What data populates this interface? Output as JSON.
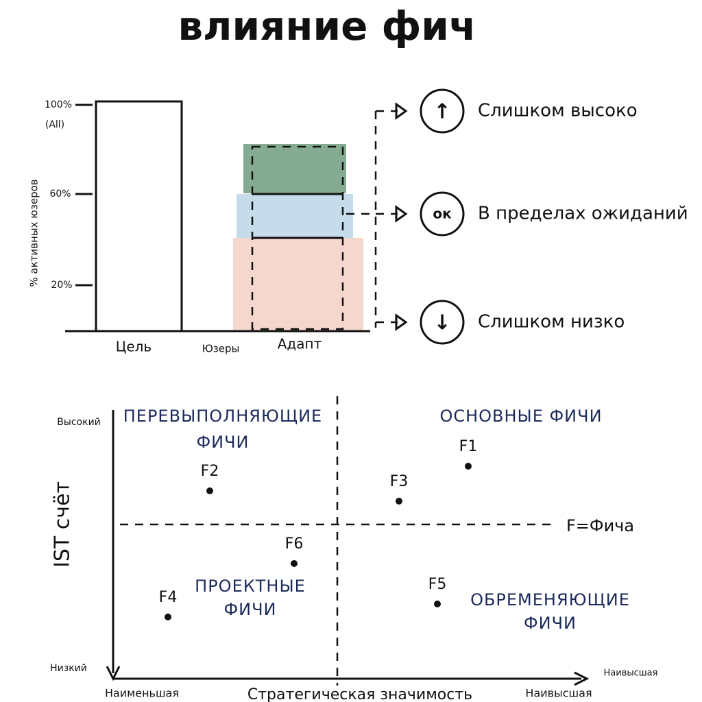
{
  "title": "влияние фич",
  "bar_chart": {
    "y_axis_label": "% активных юзеров",
    "ticks": [
      "100%",
      "60%",
      "20%"
    ],
    "tick_note": "(All)",
    "categories": [
      "Цель",
      "Юзеры",
      "Адапт"
    ],
    "zones": [
      {
        "icon": "↑",
        "label": "Слишком высоко"
      },
      {
        "icon": "ок",
        "label": "В пределах ожиданий"
      },
      {
        "icon": "↓",
        "label": "Слишком низко"
      }
    ]
  },
  "matrix": {
    "y_axis_label": "IST счёт",
    "y_high": "Высокий",
    "y_low": "Низкий",
    "x_axis_label": "Стратегическая значимость",
    "x_low": "Наименьшая",
    "x_high": "Наивысшая",
    "x_arrow_label": "Наивысшая",
    "legend": "F=Фича",
    "quadrants": [
      "ПЕРЕВЫПОЛНЯЮЩИЕ ФИЧИ",
      "ОСНОВНЫЕ ФИЧИ",
      "ПРОЕКТНЫЕ ФИЧИ",
      "ОБРЕМЕНЯЮЩИЕ ФИЧИ"
    ],
    "points": [
      "F1",
      "F2",
      "F3",
      "F4",
      "F5",
      "F6"
    ]
  }
}
